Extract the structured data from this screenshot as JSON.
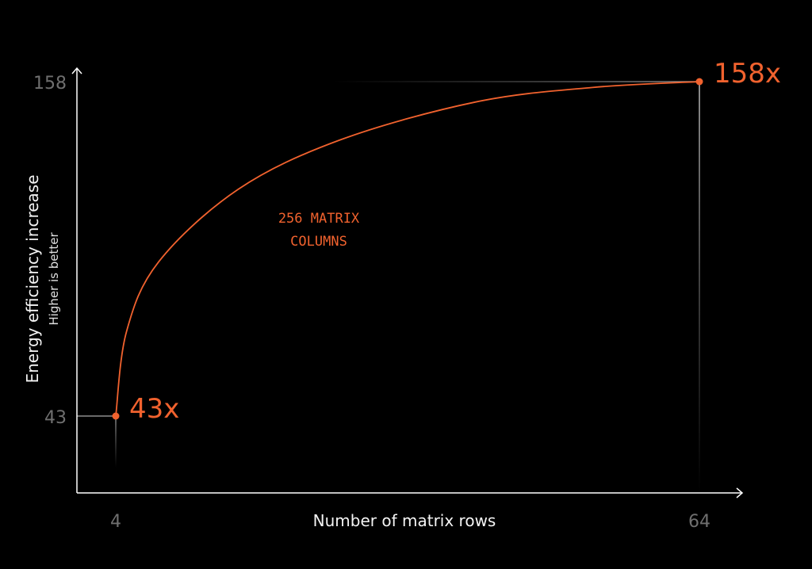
{
  "chart_data": {
    "type": "line",
    "xlabel": "Number of matrix rows",
    "ylabel": "Energy efficiency increase",
    "ylabel_sub": "Higher is better",
    "x_ticks": [
      "4",
      "64"
    ],
    "y_ticks": [
      "43",
      "158"
    ],
    "xlim": [
      4,
      64
    ],
    "ylim": [
      43,
      158
    ],
    "grid": false,
    "annotation": [
      "256 MATRIX",
      "COLUMNS"
    ],
    "series": [
      {
        "x": [
          4,
          5.1,
          8.4,
          16.6,
          27.1,
          41,
          53,
          64
        ],
        "y": [
          43,
          72,
          96,
          121,
          138,
          151,
          156,
          158
        ]
      }
    ],
    "point_labels": [
      {
        "x": 4,
        "y": 43,
        "label": "43x"
      },
      {
        "x": 64,
        "y": 158,
        "label": "158x"
      }
    ],
    "colors": {
      "series": "#f1622e",
      "axis": "#ffffff",
      "tick": "#6f6f6f",
      "guide": "#6f6f6f"
    }
  }
}
